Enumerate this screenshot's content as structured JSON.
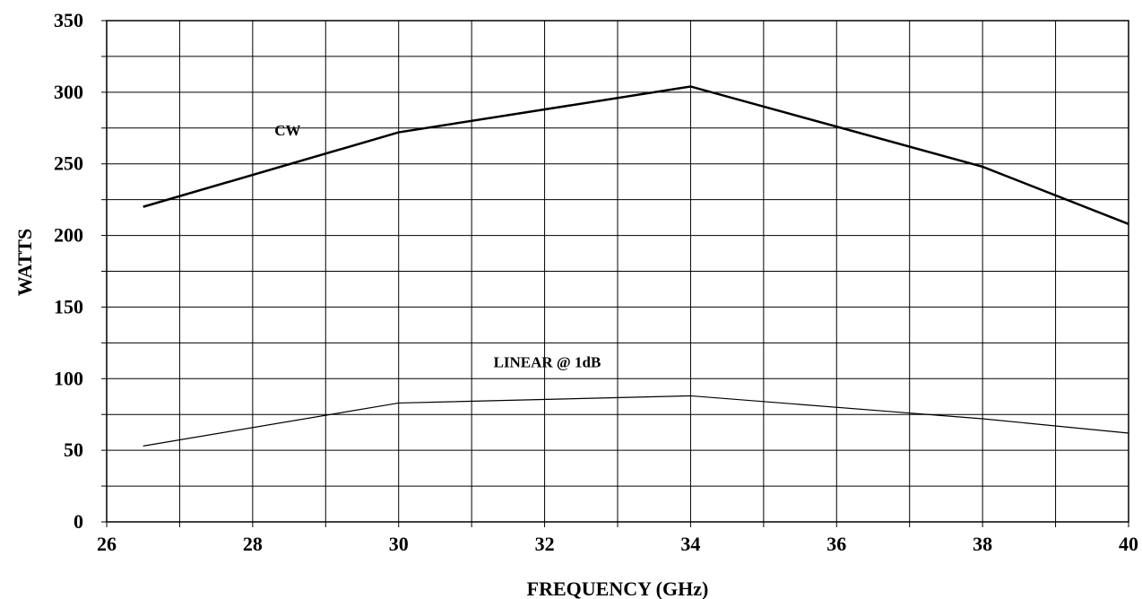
{
  "chart_data": {
    "type": "line",
    "xlabel": "FREQUENCY (GHz)",
    "ylabel": "WATTS",
    "xlim": [
      26,
      40
    ],
    "ylim": [
      0,
      350
    ],
    "x_ticks": [
      26,
      28,
      30,
      32,
      34,
      36,
      38,
      40
    ],
    "y_ticks": [
      0,
      50,
      100,
      150,
      200,
      250,
      300,
      350
    ],
    "x_grid_step": 1,
    "y_grid_step": 25,
    "grid": true,
    "series": [
      {
        "name": "CW",
        "x": [
          26.5,
          30,
          34,
          38,
          40
        ],
        "values": [
          220,
          272,
          304,
          248,
          208
        ]
      },
      {
        "name": "LINEAR @ 1dB",
        "x": [
          26.5,
          30,
          34,
          38,
          40
        ],
        "values": [
          53,
          83,
          88,
          72,
          62
        ]
      }
    ],
    "annotations": [
      {
        "text": "CW",
        "x": 28.3,
        "y": 270
      },
      {
        "text": "LINEAR @ 1dB",
        "x": 31.3,
        "y": 108
      }
    ]
  }
}
